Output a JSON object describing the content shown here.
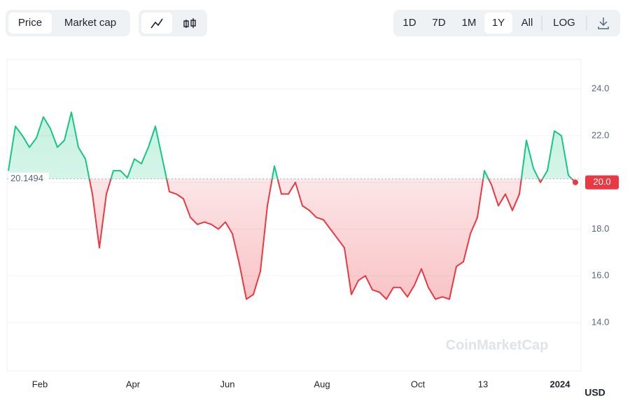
{
  "controls": {
    "view": [
      "Price",
      "Market cap"
    ],
    "ranges": [
      "1D",
      "7D",
      "1M",
      "1Y",
      "All",
      "LOG"
    ],
    "selected_view": "Price",
    "selected_range": "1Y"
  },
  "chart_data": {
    "type": "line",
    "baseline": {
      "value": 20.1494,
      "label": "20.1494"
    },
    "current": {
      "value": 20.0,
      "label": "20.0"
    },
    "currency": "USD",
    "watermark": "CoinMarketCap",
    "up_color": "#16c784",
    "down_color": "#ea3943",
    "x": [
      0,
      1,
      2,
      3,
      4,
      5,
      6,
      7,
      8,
      9,
      10,
      11,
      12,
      13,
      14,
      15,
      16,
      17,
      18,
      19,
      20,
      21,
      22,
      23,
      24,
      25,
      26,
      27,
      28,
      29,
      30,
      31,
      32,
      33,
      34,
      35,
      36,
      37,
      38,
      39,
      40,
      41,
      42,
      43,
      44,
      45,
      46,
      47,
      48,
      49,
      50,
      51,
      52,
      53,
      54,
      55,
      56,
      57,
      58,
      59,
      60,
      61,
      62,
      63,
      64,
      65,
      66,
      67,
      68,
      69,
      70,
      71,
      72,
      73,
      74,
      75,
      76,
      77,
      78,
      79,
      80,
      81
    ],
    "values": [
      20.5,
      22.4,
      22.0,
      21.5,
      21.9,
      22.8,
      22.3,
      21.5,
      21.8,
      23.0,
      21.5,
      21.0,
      19.5,
      17.2,
      19.5,
      20.5,
      20.5,
      20.2,
      21.0,
      20.8,
      21.5,
      22.4,
      21.0,
      19.6,
      19.5,
      19.3,
      18.5,
      18.2,
      18.3,
      18.2,
      18.0,
      18.3,
      17.8,
      16.5,
      15.0,
      15.2,
      16.2,
      19.0,
      20.7,
      19.5,
      19.5,
      20.0,
      19.0,
      18.8,
      18.5,
      18.4,
      18.0,
      17.6,
      17.2,
      15.2,
      15.8,
      16.0,
      15.4,
      15.3,
      15.0,
      15.5,
      15.5,
      15.1,
      15.6,
      16.3,
      15.5,
      15.0,
      15.1,
      15.0,
      16.4,
      16.6,
      17.8,
      18.5,
      20.5,
      19.9,
      19.0,
      19.5,
      18.8,
      19.5,
      21.8,
      20.6,
      20.0,
      20.5,
      22.2,
      22.0,
      20.3,
      20.0
    ],
    "xlim": [
      -0.2,
      81.8
    ],
    "xticks": [
      {
        "value": 4.5,
        "label": "Feb"
      },
      {
        "value": 17.8,
        "label": "Apr"
      },
      {
        "value": 31.3,
        "label": "Jun"
      },
      {
        "value": 44.8,
        "label": "Aug"
      },
      {
        "value": 58.5,
        "label": "Oct"
      },
      {
        "value": 67.8,
        "label": "13"
      },
      {
        "value": 78.8,
        "label": "2024"
      }
    ],
    "ylim": [
      11.93,
      25.26
    ],
    "yticks": [
      {
        "value": 14,
        "label": "14.0"
      },
      {
        "value": 16,
        "label": "16.0"
      },
      {
        "value": 18,
        "label": "18.0"
      },
      {
        "value": 20,
        "label": "20.0"
      },
      {
        "value": 22,
        "label": "22.0"
      },
      {
        "value": 24,
        "label": "24.0"
      }
    ]
  }
}
